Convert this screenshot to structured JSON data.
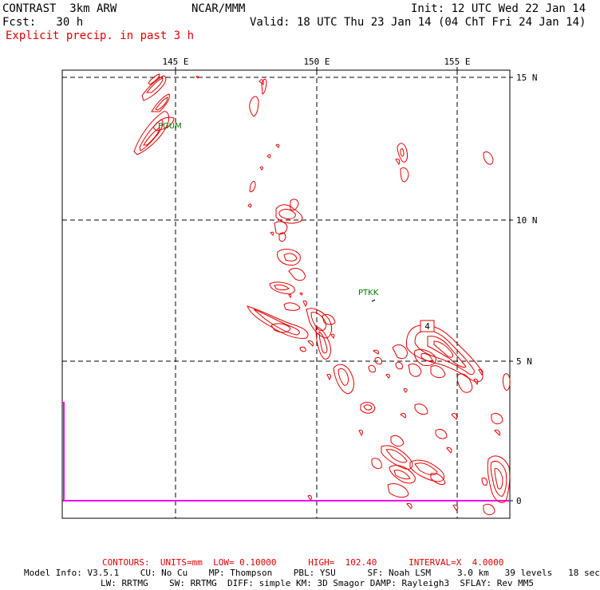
{
  "header": {
    "left_line1": "CONTRAST  3km ARW",
    "center_line1": "NCAR/MMM",
    "init": "Init: 12 UTC Wed 22 Jan 14",
    "fcst": "Fcst:   30 h",
    "valid": "Valid: 18 UTC Thu 23 Jan 14 (04 ChT Fri 24 Jan 14)",
    "field": "Explicit precip. in past 3 h"
  },
  "map": {
    "lon_labels": [
      "145 E",
      "150 E",
      "155 E"
    ],
    "lat_labels": [
      "15 N",
      "10 N",
      "5 N",
      "0"
    ],
    "stations": [
      "PGUM",
      "PTKK"
    ],
    "max_label": "4",
    "contour_color": "#e00000",
    "frame_color": "#000000",
    "boundary_color": "#ee00ee"
  },
  "footer": {
    "contours": "CONTOURS:  UNITS=mm  LOW= 0.10000      HIGH=  102.40      INTERVAL=X  4.0000",
    "model_line1": "Model Info: V3.5.1    CU: No Cu    MP: Thompson    PBL: YSU      SF: Noah LSM     3.0 km   39 levels   18 sec",
    "model_line2": "LW: RRTMG    SW: RRTMG  DIFF: simple KM: 3D Smagor DAMP: Rayleigh3  SFLAY: Rev MM5"
  }
}
